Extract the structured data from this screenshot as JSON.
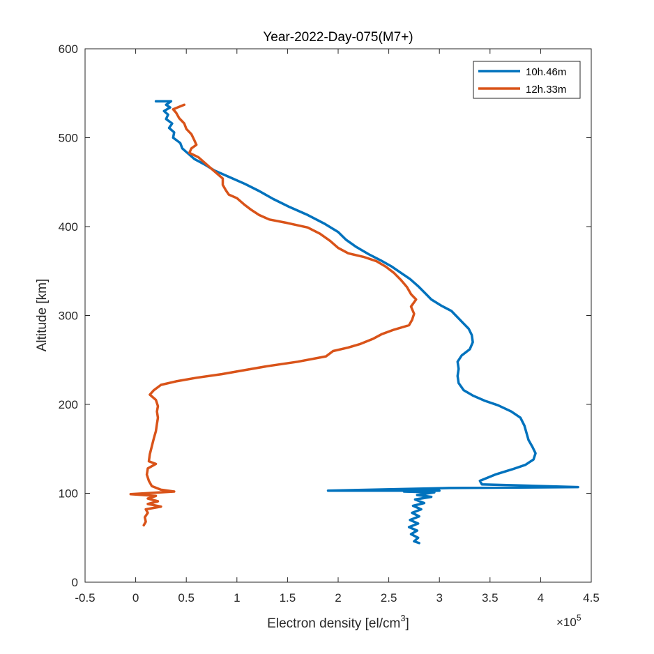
{
  "chart_data": {
    "type": "line",
    "title": "Year-2022-Day-075(M7+)",
    "xlabel": "Electron density [el/cm",
    "xlabel_superscript": "3",
    "xlabel_suffix": "]",
    "ylabel": "Altitude [km]",
    "x_multiplier_label": "×10",
    "x_multiplier_exponent": "5",
    "xlim": [
      -0.5,
      4.5
    ],
    "ylim": [
      0,
      600
    ],
    "xticks": [
      -0.5,
      0,
      0.5,
      1,
      1.5,
      2,
      2.5,
      3,
      3.5,
      4,
      4.5
    ],
    "xtick_labels": [
      "-0.5",
      "0",
      "0.5",
      "1",
      "1.5",
      "2",
      "2.5",
      "3",
      "3.5",
      "4",
      "4.5"
    ],
    "yticks": [
      0,
      100,
      200,
      300,
      400,
      500,
      600
    ],
    "ytick_labels": [
      "0",
      "100",
      "200",
      "300",
      "400",
      "500",
      "600"
    ],
    "legend_position": "top-right",
    "series": [
      {
        "name": "10h.46m",
        "color": "#0072BD",
        "points": [
          [
            0.2,
            541
          ],
          [
            0.35,
            541
          ],
          [
            0.3,
            537
          ],
          [
            0.34,
            534
          ],
          [
            0.28,
            530
          ],
          [
            0.32,
            526
          ],
          [
            0.3,
            521
          ],
          [
            0.36,
            516
          ],
          [
            0.33,
            511
          ],
          [
            0.38,
            506
          ],
          [
            0.37,
            500
          ],
          [
            0.44,
            494
          ],
          [
            0.46,
            488
          ],
          [
            0.52,
            482
          ],
          [
            0.58,
            476
          ],
          [
            0.68,
            470
          ],
          [
            0.78,
            463
          ],
          [
            0.92,
            456
          ],
          [
            1.08,
            448
          ],
          [
            1.22,
            440
          ],
          [
            1.36,
            431
          ],
          [
            1.52,
            422
          ],
          [
            1.7,
            413
          ],
          [
            1.87,
            403
          ],
          [
            2.0,
            394
          ],
          [
            2.08,
            385
          ],
          [
            2.18,
            377
          ],
          [
            2.3,
            369
          ],
          [
            2.42,
            362
          ],
          [
            2.53,
            355
          ],
          [
            2.62,
            348
          ],
          [
            2.71,
            341
          ],
          [
            2.79,
            333
          ],
          [
            2.86,
            325
          ],
          [
            2.92,
            318
          ],
          [
            3.02,
            311
          ],
          [
            3.12,
            305
          ],
          [
            3.18,
            298
          ],
          [
            3.23,
            292
          ],
          [
            3.29,
            285
          ],
          [
            3.32,
            278
          ],
          [
            3.33,
            270
          ],
          [
            3.3,
            262
          ],
          [
            3.22,
            255
          ],
          [
            3.18,
            248
          ],
          [
            3.19,
            240
          ],
          [
            3.18,
            232
          ],
          [
            3.19,
            224
          ],
          [
            3.24,
            216
          ],
          [
            3.33,
            210
          ],
          [
            3.45,
            204
          ],
          [
            3.58,
            199
          ],
          [
            3.71,
            192
          ],
          [
            3.8,
            185
          ],
          [
            3.84,
            176
          ],
          [
            3.86,
            168
          ],
          [
            3.88,
            160
          ],
          [
            3.92,
            152
          ],
          [
            3.95,
            145
          ],
          [
            3.93,
            138
          ],
          [
            3.85,
            132
          ],
          [
            3.72,
            127
          ],
          [
            3.55,
            121
          ],
          [
            3.4,
            114
          ],
          [
            3.42,
            110
          ],
          [
            4.37,
            107
          ],
          [
            3.1,
            106
          ],
          [
            1.9,
            103
          ],
          [
            3.0,
            103
          ],
          [
            2.65,
            102
          ],
          [
            2.95,
            101
          ],
          [
            2.78,
            98
          ],
          [
            2.92,
            96
          ],
          [
            2.76,
            93
          ],
          [
            2.85,
            89
          ],
          [
            2.74,
            86
          ],
          [
            2.82,
            82
          ],
          [
            2.73,
            78
          ],
          [
            2.8,
            74
          ],
          [
            2.71,
            70
          ],
          [
            2.79,
            66
          ],
          [
            2.7,
            62
          ],
          [
            2.78,
            58
          ],
          [
            2.72,
            54
          ],
          [
            2.79,
            50
          ],
          [
            2.75,
            46
          ],
          [
            2.8,
            44
          ]
        ]
      },
      {
        "name": "12h.33m",
        "color": "#D95319",
        "points": [
          [
            0.48,
            537
          ],
          [
            0.37,
            532
          ],
          [
            0.4,
            528
          ],
          [
            0.43,
            522
          ],
          [
            0.48,
            516
          ],
          [
            0.5,
            510
          ],
          [
            0.55,
            504
          ],
          [
            0.58,
            497
          ],
          [
            0.6,
            492
          ],
          [
            0.55,
            488
          ],
          [
            0.53,
            483
          ],
          [
            0.62,
            478
          ],
          [
            0.68,
            472
          ],
          [
            0.74,
            466
          ],
          [
            0.8,
            460
          ],
          [
            0.86,
            454
          ],
          [
            0.86,
            447
          ],
          [
            0.89,
            441
          ],
          [
            0.92,
            436
          ],
          [
            1.0,
            432
          ],
          [
            1.07,
            425
          ],
          [
            1.14,
            419
          ],
          [
            1.22,
            413
          ],
          [
            1.32,
            408
          ],
          [
            1.5,
            404
          ],
          [
            1.7,
            399
          ],
          [
            1.82,
            392
          ],
          [
            1.92,
            384
          ],
          [
            2.0,
            376
          ],
          [
            2.1,
            370
          ],
          [
            2.25,
            366
          ],
          [
            2.38,
            361
          ],
          [
            2.47,
            355
          ],
          [
            2.55,
            348
          ],
          [
            2.62,
            340
          ],
          [
            2.68,
            332
          ],
          [
            2.72,
            324
          ],
          [
            2.77,
            318
          ],
          [
            2.72,
            310
          ],
          [
            2.75,
            302
          ],
          [
            2.73,
            295
          ],
          [
            2.7,
            289
          ],
          [
            2.55,
            284
          ],
          [
            2.43,
            279
          ],
          [
            2.35,
            274
          ],
          [
            2.22,
            268
          ],
          [
            2.1,
            264
          ],
          [
            1.95,
            260
          ],
          [
            1.88,
            254
          ],
          [
            1.6,
            248
          ],
          [
            1.3,
            243
          ],
          [
            1.05,
            238
          ],
          [
            0.85,
            234
          ],
          [
            0.6,
            230
          ],
          [
            0.4,
            226
          ],
          [
            0.25,
            222
          ],
          [
            0.18,
            216
          ],
          [
            0.14,
            211
          ],
          [
            0.2,
            205
          ],
          [
            0.22,
            198
          ],
          [
            0.21,
            192
          ],
          [
            0.22,
            185
          ],
          [
            0.21,
            178
          ],
          [
            0.2,
            170
          ],
          [
            0.18,
            162
          ],
          [
            0.16,
            153
          ],
          [
            0.14,
            144
          ],
          [
            0.13,
            136
          ],
          [
            0.2,
            133
          ],
          [
            0.12,
            128
          ],
          [
            0.11,
            121
          ],
          [
            0.13,
            114
          ],
          [
            0.16,
            108
          ],
          [
            0.25,
            104
          ],
          [
            0.38,
            102
          ],
          [
            -0.05,
            99
          ],
          [
            0.2,
            97
          ],
          [
            0.12,
            94
          ],
          [
            0.22,
            91
          ],
          [
            0.12,
            88
          ],
          [
            0.25,
            85
          ],
          [
            0.1,
            82
          ],
          [
            0.12,
            78
          ],
          [
            0.09,
            73
          ],
          [
            0.1,
            68
          ],
          [
            0.08,
            64
          ]
        ]
      }
    ]
  }
}
